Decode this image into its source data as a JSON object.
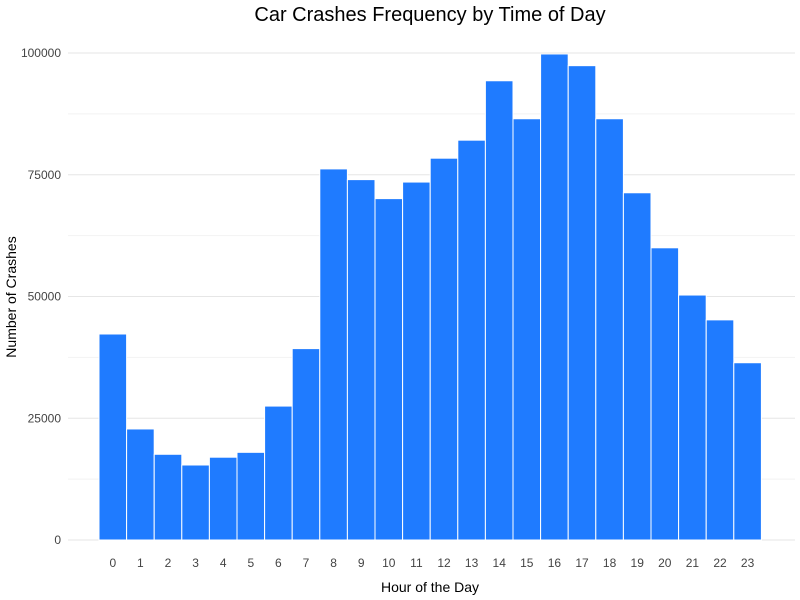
{
  "chart_data": {
    "type": "bar",
    "title": "Car Crashes Frequency by Time of Day",
    "xlabel": "Hour of the Day",
    "ylabel": "Number of Crashes",
    "categories": [
      "0",
      "1",
      "2",
      "3",
      "4",
      "5",
      "6",
      "7",
      "8",
      "9",
      "10",
      "11",
      "12",
      "13",
      "14",
      "15",
      "16",
      "17",
      "18",
      "19",
      "20",
      "21",
      "22",
      "23"
    ],
    "values": [
      42300,
      22800,
      17600,
      15400,
      17000,
      18000,
      27500,
      39300,
      76200,
      74000,
      70100,
      73500,
      78400,
      82100,
      94300,
      86500,
      99800,
      97400,
      86500,
      71300,
      60000,
      50300,
      45200,
      36400
    ],
    "ylim": [
      0,
      100000
    ],
    "yticks": [
      "0",
      "25000",
      "50000",
      "75000",
      "100000"
    ],
    "grid": true,
    "bar_color": "#1F7BFF"
  }
}
